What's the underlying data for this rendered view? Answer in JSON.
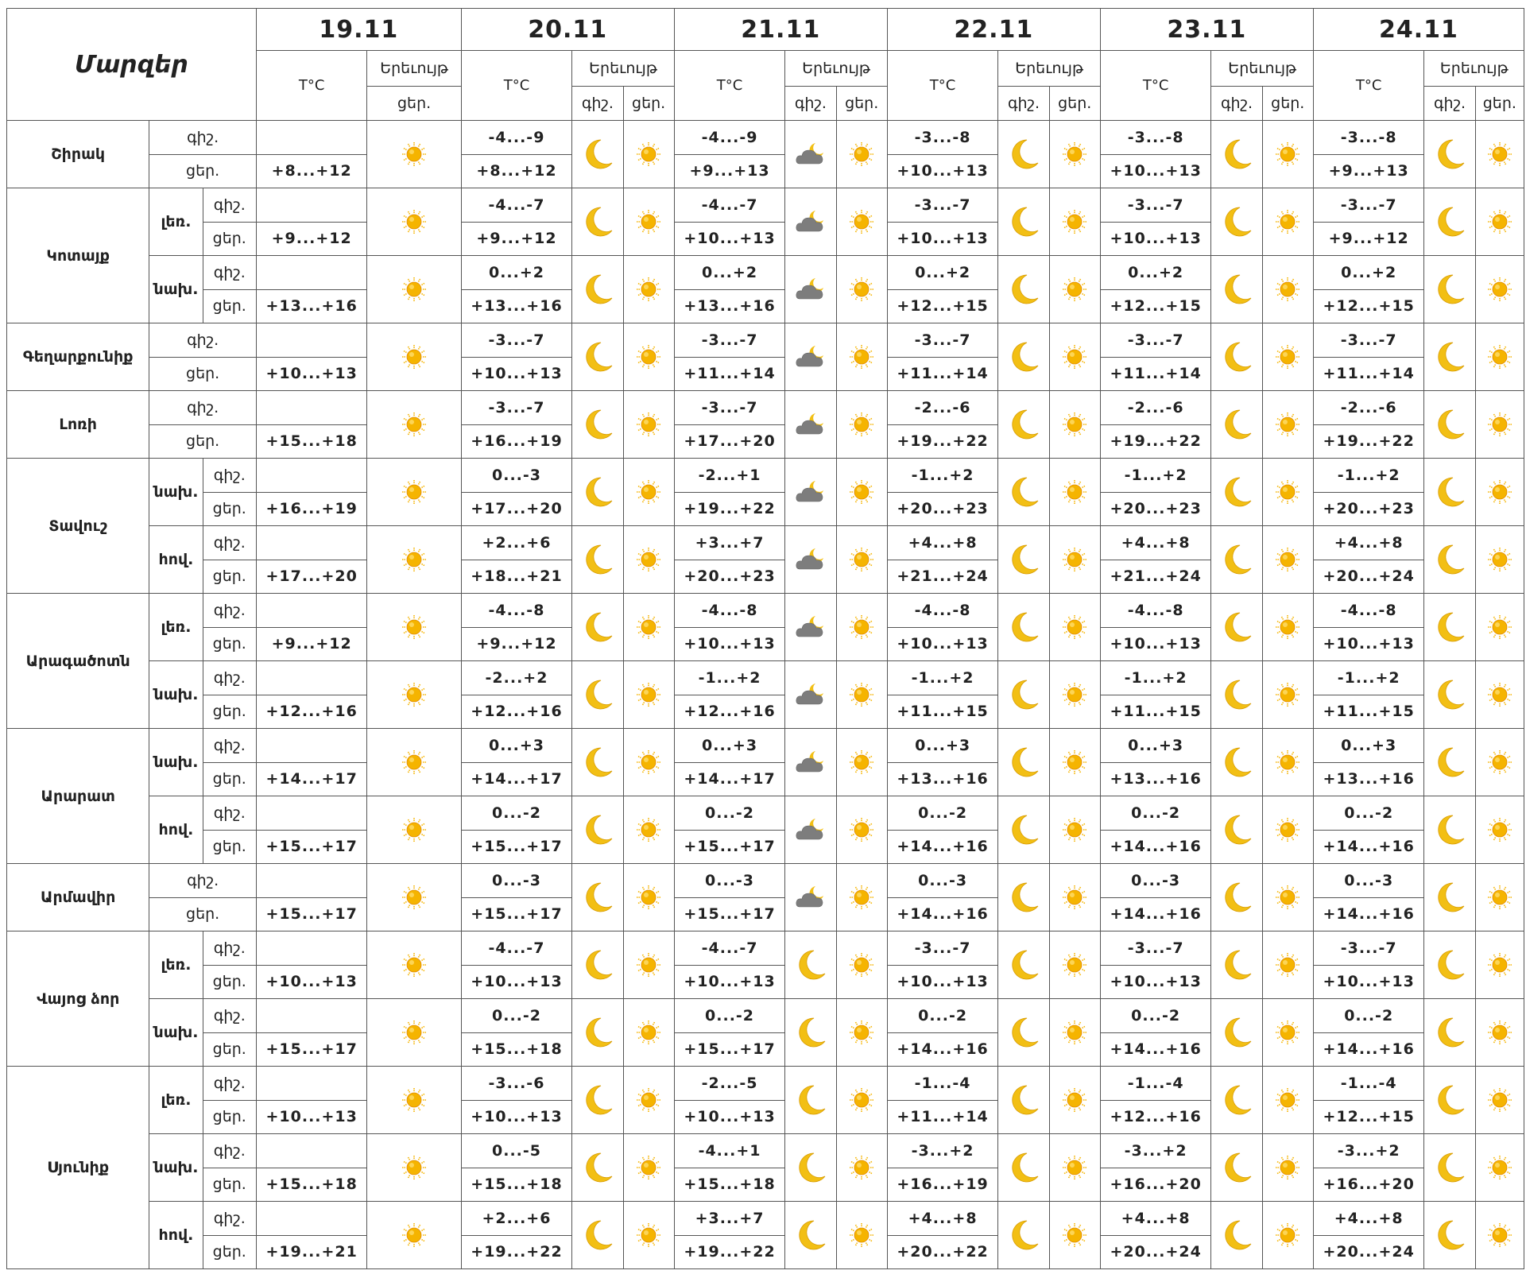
{
  "header": {
    "title": "Մարզեր",
    "dates": [
      "19.11",
      "20.11",
      "21.11",
      "22.11",
      "23.11",
      "24.11"
    ],
    "temp_label": "T°C",
    "weather_label": "Երեւույթ",
    "night_label": "գիշ.",
    "day_label": "ցեր."
  },
  "icons": {
    "night": "moon-icon",
    "day": "sun-icon",
    "cloudy_night": "cloud-moon-icon"
  },
  "colors": {
    "sun": "#f5b400",
    "moon": "#f2bf14",
    "cloud": "#7d7d7d",
    "border": "#555555"
  },
  "regions": [
    {
      "name": "Շիրակ",
      "zones": [
        {
          "zone": "",
          "night": [
            "",
            "-4...-9",
            "-4...-9",
            "-3...-8",
            "-3...-8",
            "-3...-8"
          ],
          "day": [
            "+8...+12",
            "+8...+12",
            "+9...+13",
            "+10...+13",
            "+10...+13",
            "+9...+13"
          ]
        }
      ]
    },
    {
      "name": "Կոտայք",
      "zones": [
        {
          "zone": "լեռ.",
          "night": [
            "",
            "-4...-7",
            "-4...-7",
            "-3...-7",
            "-3...-7",
            "-3...-7"
          ],
          "day": [
            "+9...+12",
            "+9...+12",
            "+10...+13",
            "+10...+13",
            "+10...+13",
            "+9...+12"
          ]
        },
        {
          "zone": "նախ.",
          "night": [
            "",
            "0...+2",
            "0...+2",
            "0...+2",
            "0...+2",
            "0...+2"
          ],
          "day": [
            "+13...+16",
            "+13...+16",
            "+13...+16",
            "+12...+15",
            "+12...+15",
            "+12...+15"
          ]
        }
      ]
    },
    {
      "name": "Գեղարքունիք",
      "zones": [
        {
          "zone": "",
          "night": [
            "",
            "-3...-7",
            "-3...-7",
            "-3...-7",
            "-3...-7",
            "-3...-7"
          ],
          "day": [
            "+10...+13",
            "+10...+13",
            "+11...+14",
            "+11...+14",
            "+11...+14",
            "+11...+14"
          ]
        }
      ]
    },
    {
      "name": "Լոռի",
      "zones": [
        {
          "zone": "",
          "night": [
            "",
            "-3...-7",
            "-3...-7",
            "-2...-6",
            "-2...-6",
            "-2...-6"
          ],
          "day": [
            "+15...+18",
            "+16...+19",
            "+17...+20",
            "+19...+22",
            "+19...+22",
            "+19...+22"
          ]
        }
      ]
    },
    {
      "name": "Տավուշ",
      "zones": [
        {
          "zone": "նախ.",
          "night": [
            "",
            "0...-3",
            "-2...+1",
            "-1...+2",
            "-1...+2",
            "-1...+2"
          ],
          "day": [
            "+16...+19",
            "+17...+20",
            "+19...+22",
            "+20...+23",
            "+20...+23",
            "+20...+23"
          ]
        },
        {
          "zone": "հով.",
          "night": [
            "",
            "+2...+6",
            "+3...+7",
            "+4...+8",
            "+4...+8",
            "+4...+8"
          ],
          "day": [
            "+17...+20",
            "+18...+21",
            "+20...+23",
            "+21...+24",
            "+21...+24",
            "+20...+24"
          ]
        }
      ]
    },
    {
      "name": "Արագածոտն",
      "zones": [
        {
          "zone": "լեռ.",
          "night": [
            "",
            "-4...-8",
            "-4...-8",
            "-4...-8",
            "-4...-8",
            "-4...-8"
          ],
          "day": [
            "+9...+12",
            "+9...+12",
            "+10...+13",
            "+10...+13",
            "+10...+13",
            "+10...+13"
          ]
        },
        {
          "zone": "նախ.",
          "night": [
            "",
            "-2...+2",
            "-1...+2",
            "-1...+2",
            "-1...+2",
            "-1...+2"
          ],
          "day": [
            "+12...+16",
            "+12...+16",
            "+12...+16",
            "+11...+15",
            "+11...+15",
            "+11...+15"
          ]
        }
      ]
    },
    {
      "name": "Արարատ",
      "zones": [
        {
          "zone": "նախ.",
          "night": [
            "",
            "0...+3",
            "0...+3",
            "0...+3",
            "0...+3",
            "0...+3"
          ],
          "day": [
            "+14...+17",
            "+14...+17",
            "+14...+17",
            "+13...+16",
            "+13...+16",
            "+13...+16"
          ]
        },
        {
          "zone": "հով.",
          "night": [
            "",
            "0...-2",
            "0...-2",
            "0...-2",
            "0...-2",
            "0...-2"
          ],
          "day": [
            "+15...+17",
            "+15...+17",
            "+15...+17",
            "+14...+16",
            "+14...+16",
            "+14...+16"
          ]
        }
      ]
    },
    {
      "name": "Արմավիր",
      "zones": [
        {
          "zone": "",
          "night": [
            "",
            "0...-3",
            "0...-3",
            "0...-3",
            "0...-3",
            "0...-3"
          ],
          "day": [
            "+15...+17",
            "+15...+17",
            "+15...+17",
            "+14...+16",
            "+14...+16",
            "+14...+16"
          ]
        }
      ]
    },
    {
      "name": "Վայոց ձոր",
      "zones": [
        {
          "zone": "լեռ.",
          "night": [
            "",
            "-4...-7",
            "-4...-7",
            "-3...-7",
            "-3...-7",
            "-3...-7"
          ],
          "day": [
            "+10...+13",
            "+10...+13",
            "+10...+13",
            "+10...+13",
            "+10...+13",
            "+10...+13"
          ]
        },
        {
          "zone": "նախ.",
          "night": [
            "",
            "0...-2",
            "0...-2",
            "0...-2",
            "0...-2",
            "0...-2"
          ],
          "day": [
            "+15...+17",
            "+15...+18",
            "+15...+17",
            "+14...+16",
            "+14...+16",
            "+14...+16"
          ]
        }
      ]
    },
    {
      "name": "Սյունիք",
      "zones": [
        {
          "zone": "լեռ.",
          "night": [
            "",
            "-3...-6",
            "-2...-5",
            "-1...-4",
            "-1...-4",
            "-1...-4"
          ],
          "day": [
            "+10...+13",
            "+10...+13",
            "+10...+13",
            "+11...+14",
            "+12...+16",
            "+12...+15"
          ]
        },
        {
          "zone": "նախ.",
          "night": [
            "",
            "0...-5",
            "-4...+1",
            "-3...+2",
            "-3...+2",
            "-3...+2"
          ],
          "day": [
            "+15...+18",
            "+15...+18",
            "+15...+18",
            "+16...+19",
            "+16...+20",
            "+16...+20"
          ]
        },
        {
          "zone": "հով.",
          "night": [
            "",
            "+2...+6",
            "+3...+7",
            "+4...+8",
            "+4...+8",
            "+4...+8"
          ],
          "day": [
            "+19...+21",
            "+19...+22",
            "+19...+22",
            "+20...+22",
            "+20...+24",
            "+20...+24"
          ]
        }
      ]
    }
  ],
  "day21_night_cloudy": [
    true,
    true,
    true,
    true,
    true,
    true,
    true,
    true,
    true,
    true,
    true,
    true,
    false,
    false,
    false,
    false,
    false
  ]
}
